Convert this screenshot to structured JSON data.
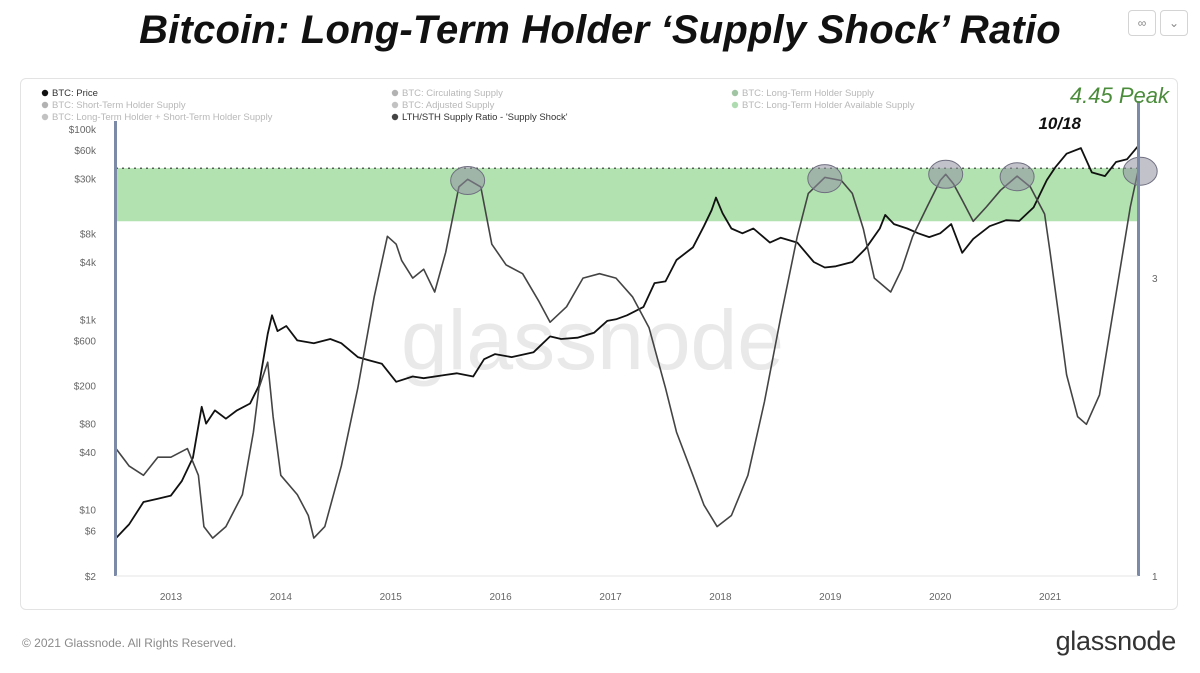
{
  "title": "Bitcoin: Long-Term Holder ‘Supply Shock’ Ratio",
  "toolbar": {
    "link_icon_glyph": "∞",
    "chevron_glyph": "⌄"
  },
  "footer": {
    "copyright": "© 2021 Glassnode. All Rights Reserved.",
    "brand": "glassnode"
  },
  "watermark": "glassnode",
  "annotations": {
    "peak_label": "4.45 Peak",
    "peak_date": "10/18"
  },
  "colors": {
    "price_line": "#111111",
    "ratio_line": "#444444",
    "band_fill": "#a9dfa6",
    "peak_circle": "#8f8fa0",
    "peak_text": "#4a8c3a",
    "axis_bar": "#7c8aa8"
  },
  "chart_data": {
    "type": "line",
    "legend": [
      {
        "label": "BTC: Price",
        "color": "#111111",
        "faded": false
      },
      {
        "label": "BTC: Circulating Supply",
        "color": "#555555",
        "faded": true
      },
      {
        "label": "BTC: Long-Term Holder Supply",
        "color": "#2e7d32",
        "faded": true
      },
      {
        "label": "BTC: Short-Term Holder Supply",
        "color": "#555555",
        "faded": true
      },
      {
        "label": "BTC: Adjusted Supply",
        "color": "#777777",
        "faded": true
      },
      {
        "label": "BTC: Long-Term Holder Available Supply",
        "color": "#4caf50",
        "faded": true
      },
      {
        "label": "BTC: Long-Term Holder + Short-Term Holder Supply",
        "color": "#777777",
        "faded": true
      },
      {
        "label": "LTH/STH Supply Ratio - 'Supply Shock'",
        "color": "#444444",
        "faded": false
      }
    ],
    "x_ticks": [
      "2013",
      "2014",
      "2015",
      "2016",
      "2017",
      "2018",
      "2019",
      "2020",
      "2021"
    ],
    "x_range": [
      2012.5,
      2021.8
    ],
    "y_left": {
      "scale": "log",
      "ticks": [
        {
          "label": "$100k",
          "value": 100000
        },
        {
          "label": "$60k",
          "value": 60000
        },
        {
          "label": "$30k",
          "value": 30000
        },
        {
          "label": "$8k",
          "value": 8000
        },
        {
          "label": "$4k",
          "value": 4000
        },
        {
          "label": "$1k",
          "value": 1000
        },
        {
          "label": "$600",
          "value": 600
        },
        {
          "label": "$200",
          "value": 200
        },
        {
          "label": "$80",
          "value": 80
        },
        {
          "label": "$40",
          "value": 40
        },
        {
          "label": "$10",
          "value": 10
        },
        {
          "label": "$6",
          "value": 6
        },
        {
          "label": "$2",
          "value": 2
        }
      ],
      "range": [
        2,
        100000
      ]
    },
    "y_right": {
      "scale": "log",
      "ticks": [
        {
          "label": "3",
          "value": 3
        },
        {
          "label": "1",
          "value": 1
        }
      ],
      "range": [
        1,
        5.2
      ]
    },
    "band": {
      "low": 3.7,
      "high": 4.5
    },
    "highlight_peaks": [
      {
        "x": 2015.7,
        "y": 4.3
      },
      {
        "x": 2018.95,
        "y": 4.33
      },
      {
        "x": 2020.05,
        "y": 4.4
      },
      {
        "x": 2020.7,
        "y": 4.36
      },
      {
        "x": 2021.82,
        "y": 4.45
      }
    ],
    "series": [
      {
        "name": "BTC: Price",
        "axis": "left",
        "points": [
          [
            2012.5,
            5
          ],
          [
            2012.62,
            7
          ],
          [
            2012.75,
            12
          ],
          [
            2012.88,
            13
          ],
          [
            2013.0,
            14
          ],
          [
            2013.1,
            20
          ],
          [
            2013.2,
            35
          ],
          [
            2013.28,
            120
          ],
          [
            2013.32,
            80
          ],
          [
            2013.4,
            110
          ],
          [
            2013.5,
            90
          ],
          [
            2013.6,
            110
          ],
          [
            2013.72,
            130
          ],
          [
            2013.8,
            200
          ],
          [
            2013.88,
            700
          ],
          [
            2013.92,
            1100
          ],
          [
            2013.97,
            750
          ],
          [
            2014.05,
            850
          ],
          [
            2014.15,
            600
          ],
          [
            2014.3,
            560
          ],
          [
            2014.45,
            620
          ],
          [
            2014.55,
            560
          ],
          [
            2014.7,
            400
          ],
          [
            2014.8,
            370
          ],
          [
            2014.92,
            340
          ],
          [
            2015.05,
            220
          ],
          [
            2015.2,
            250
          ],
          [
            2015.3,
            240
          ],
          [
            2015.5,
            260
          ],
          [
            2015.6,
            270
          ],
          [
            2015.75,
            250
          ],
          [
            2015.85,
            380
          ],
          [
            2015.95,
            430
          ],
          [
            2016.1,
            400
          ],
          [
            2016.3,
            450
          ],
          [
            2016.45,
            660
          ],
          [
            2016.55,
            620
          ],
          [
            2016.7,
            640
          ],
          [
            2016.85,
            720
          ],
          [
            2016.97,
            960
          ],
          [
            2017.05,
            1000
          ],
          [
            2017.15,
            1100
          ],
          [
            2017.3,
            1350
          ],
          [
            2017.4,
            2400
          ],
          [
            2017.5,
            2500
          ],
          [
            2017.6,
            4200
          ],
          [
            2017.75,
            5700
          ],
          [
            2017.85,
            9500
          ],
          [
            2017.92,
            14000
          ],
          [
            2017.96,
            19000
          ],
          [
            2018.02,
            13000
          ],
          [
            2018.1,
            9000
          ],
          [
            2018.2,
            8000
          ],
          [
            2018.3,
            9000
          ],
          [
            2018.45,
            6400
          ],
          [
            2018.55,
            7200
          ],
          [
            2018.7,
            6400
          ],
          [
            2018.85,
            4000
          ],
          [
            2018.95,
            3500
          ],
          [
            2019.05,
            3600
          ],
          [
            2019.2,
            4000
          ],
          [
            2019.32,
            5500
          ],
          [
            2019.45,
            9000
          ],
          [
            2019.5,
            12500
          ],
          [
            2019.58,
            10000
          ],
          [
            2019.7,
            9000
          ],
          [
            2019.8,
            8000
          ],
          [
            2019.9,
            7300
          ],
          [
            2020.0,
            8000
          ],
          [
            2020.1,
            10000
          ],
          [
            2020.2,
            5000
          ],
          [
            2020.3,
            7000
          ],
          [
            2020.45,
            9500
          ],
          [
            2020.6,
            11000
          ],
          [
            2020.72,
            10800
          ],
          [
            2020.85,
            15000
          ],
          [
            2020.97,
            29000
          ],
          [
            2021.05,
            40000
          ],
          [
            2021.15,
            55000
          ],
          [
            2021.28,
            63000
          ],
          [
            2021.38,
            35000
          ],
          [
            2021.5,
            32000
          ],
          [
            2021.6,
            45000
          ],
          [
            2021.7,
            48000
          ],
          [
            2021.8,
            66000
          ]
        ]
      },
      {
        "name": "LTH/STH Supply Ratio - 'Supply Shock'",
        "axis": "right",
        "points": [
          [
            2012.5,
            1.6
          ],
          [
            2012.62,
            1.5
          ],
          [
            2012.75,
            1.45
          ],
          [
            2012.88,
            1.55
          ],
          [
            2013.0,
            1.55
          ],
          [
            2013.15,
            1.6
          ],
          [
            2013.25,
            1.45
          ],
          [
            2013.3,
            1.2
          ],
          [
            2013.38,
            1.15
          ],
          [
            2013.5,
            1.2
          ],
          [
            2013.65,
            1.35
          ],
          [
            2013.75,
            1.7
          ],
          [
            2013.8,
            2.0
          ],
          [
            2013.88,
            2.2
          ],
          [
            2013.93,
            1.8
          ],
          [
            2014.0,
            1.45
          ],
          [
            2014.15,
            1.35
          ],
          [
            2014.25,
            1.25
          ],
          [
            2014.3,
            1.15
          ],
          [
            2014.4,
            1.2
          ],
          [
            2014.55,
            1.5
          ],
          [
            2014.7,
            2.0
          ],
          [
            2014.85,
            2.8
          ],
          [
            2014.97,
            3.5
          ],
          [
            2015.05,
            3.4
          ],
          [
            2015.1,
            3.2
          ],
          [
            2015.2,
            3.0
          ],
          [
            2015.3,
            3.1
          ],
          [
            2015.4,
            2.85
          ],
          [
            2015.5,
            3.3
          ],
          [
            2015.62,
            4.2
          ],
          [
            2015.7,
            4.32
          ],
          [
            2015.82,
            4.2
          ],
          [
            2015.92,
            3.4
          ],
          [
            2016.05,
            3.15
          ],
          [
            2016.2,
            3.05
          ],
          [
            2016.35,
            2.75
          ],
          [
            2016.45,
            2.55
          ],
          [
            2016.6,
            2.7
          ],
          [
            2016.75,
            3.0
          ],
          [
            2016.9,
            3.05
          ],
          [
            2017.05,
            3.0
          ],
          [
            2017.2,
            2.8
          ],
          [
            2017.35,
            2.5
          ],
          [
            2017.5,
            2.0
          ],
          [
            2017.6,
            1.7
          ],
          [
            2017.75,
            1.45
          ],
          [
            2017.85,
            1.3
          ],
          [
            2017.97,
            1.2
          ],
          [
            2018.1,
            1.25
          ],
          [
            2018.25,
            1.45
          ],
          [
            2018.4,
            1.9
          ],
          [
            2018.55,
            2.6
          ],
          [
            2018.7,
            3.5
          ],
          [
            2018.8,
            4.1
          ],
          [
            2018.95,
            4.35
          ],
          [
            2019.1,
            4.3
          ],
          [
            2019.2,
            4.1
          ],
          [
            2019.3,
            3.6
          ],
          [
            2019.4,
            3.0
          ],
          [
            2019.55,
            2.85
          ],
          [
            2019.65,
            3.1
          ],
          [
            2019.75,
            3.5
          ],
          [
            2019.88,
            3.9
          ],
          [
            2020.0,
            4.3
          ],
          [
            2020.05,
            4.4
          ],
          [
            2020.12,
            4.25
          ],
          [
            2020.2,
            4.0
          ],
          [
            2020.3,
            3.7
          ],
          [
            2020.42,
            3.9
          ],
          [
            2020.55,
            4.15
          ],
          [
            2020.7,
            4.37
          ],
          [
            2020.82,
            4.2
          ],
          [
            2020.95,
            3.8
          ],
          [
            2021.0,
            3.3
          ],
          [
            2021.08,
            2.6
          ],
          [
            2021.15,
            2.1
          ],
          [
            2021.25,
            1.8
          ],
          [
            2021.33,
            1.75
          ],
          [
            2021.45,
            1.95
          ],
          [
            2021.55,
            2.5
          ],
          [
            2021.65,
            3.2
          ],
          [
            2021.73,
            3.9
          ],
          [
            2021.8,
            4.45
          ]
        ]
      }
    ]
  }
}
